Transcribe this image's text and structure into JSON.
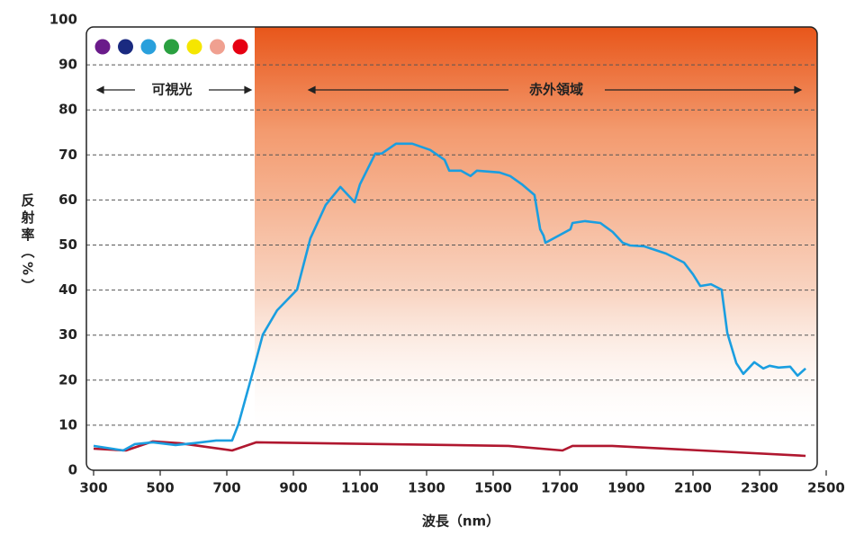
{
  "chart_data": {
    "type": "line",
    "xlabel": "波長（nm）",
    "ylabel": "反射率（%）",
    "annotations": [
      "可視光",
      "赤外領域"
    ],
    "spectrum_colors": [
      "#6a1b8a",
      "#1a2a80",
      "#29a0dc",
      "#2aa040",
      "#f5e600",
      "#f0a090",
      "#e60012"
    ],
    "xlim": [
      300,
      2500
    ],
    "xticks": [
      300,
      500,
      700,
      900,
      1100,
      1300,
      1500,
      1700,
      1900,
      2100,
      2300,
      2500
    ],
    "ylim": [
      0,
      100
    ],
    "yticks": [
      0,
      10,
      20,
      30,
      40,
      50,
      60,
      70,
      80,
      90,
      100
    ],
    "grid": true,
    "series": [
      {
        "color": "#1a9ee0",
        "x": [
          300,
          389,
          424,
          478,
          546,
          600,
          668,
          716,
          735,
          781,
          808,
          851,
          911,
          951,
          997,
          1041,
          1084,
          1100,
          1127,
          1146,
          1165,
          1208,
          1257,
          1311,
          1354,
          1368,
          1403,
          1432,
          1451,
          1519,
          1551,
          1586,
          1624,
          1641,
          1651,
          1657,
          1732,
          1738,
          1776,
          1822,
          1859,
          1889,
          1911,
          1954,
          2019,
          2073,
          2100,
          2122,
          2154,
          2186,
          2203,
          2230,
          2251,
          2284,
          2311,
          2330,
          2357,
          2392,
          2414,
          2438
        ],
        "values": [
          5.4,
          4.4,
          5.8,
          6.2,
          5.6,
          6,
          6.6,
          6.6,
          10.2,
          22.6,
          30.1,
          35.5,
          40.1,
          51.5,
          58.9,
          62.9,
          59.5,
          63.5,
          67.5,
          70.3,
          70.3,
          72.5,
          72.5,
          71.1,
          68.9,
          66.5,
          66.5,
          65.3,
          66.5,
          66.1,
          65.3,
          63.5,
          61.1,
          53.5,
          52.1,
          50.5,
          53.5,
          54.9,
          55.3,
          54.9,
          52.9,
          50.5,
          49.9,
          49.7,
          48.1,
          46.1,
          43.5,
          40.9,
          41.3,
          40.1,
          30.5,
          23.8,
          21.4,
          24,
          22.6,
          23.2,
          22.8,
          23,
          21,
          22.6
        ]
      },
      {
        "color": "#b0172f",
        "x": [
          300,
          397,
          478,
          559,
          716,
          789,
          1546,
          1708,
          1738,
          1857,
          2438
        ],
        "values": [
          4.8,
          4.4,
          6.4,
          6,
          4.4,
          6.2,
          5.4,
          4.4,
          5.4,
          5.4,
          3.2
        ]
      }
    ]
  }
}
